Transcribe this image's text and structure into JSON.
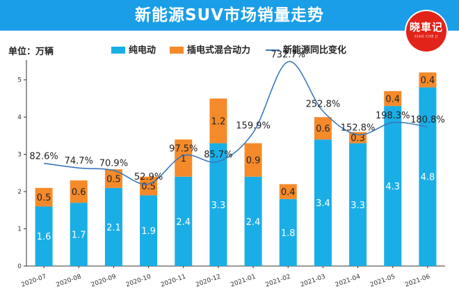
{
  "header": {
    "title": "新能源SUV市场销量走势"
  },
  "logo": {
    "text": "晓車记",
    "sub": "XIAO CHE JI"
  },
  "unit_label": "单位：万辆",
  "colors": {
    "header": "#1a9ee8",
    "bev": "#1aaee6",
    "phev": "#f58a2a",
    "line": "#3b78b8",
    "logo": "#e2231a"
  },
  "chart_data": {
    "type": "bar",
    "stacked": true,
    "title": "新能源SUV市场销量走势",
    "ylabel": "单位：万辆",
    "ylim": [
      0,
      5.5
    ],
    "yticks": [
      0,
      1,
      2,
      3,
      4,
      5
    ],
    "categories": [
      "2020-07",
      "2020-08",
      "2020-09",
      "2020-10",
      "2020-11",
      "2020-12",
      "2021-01",
      "2021-02",
      "2021-03",
      "2021-04",
      "2021-05",
      "2021-06"
    ],
    "series": [
      {
        "name": "纯电动",
        "values": [
          1.6,
          1.7,
          2.1,
          1.9,
          2.4,
          3.3,
          2.4,
          1.8,
          3.4,
          3.3,
          4.3,
          4.8
        ]
      },
      {
        "name": "插电式混合动力",
        "values": [
          0.5,
          0.6,
          0.5,
          0.5,
          1.0,
          1.2,
          0.9,
          0.4,
          0.6,
          0.3,
          0.4,
          0.4
        ]
      }
    ],
    "line_series": {
      "name": "新能源同比变化",
      "labels": [
        "82.6%",
        "74.7%",
        "70.9%",
        "52.9%",
        "97.5%",
        "85.7%",
        "159.9%",
        "732.7%",
        "252.8%",
        "152.8%",
        "198.3%",
        "180.8%"
      ],
      "values": [
        82.6,
        74.7,
        70.9,
        52.9,
        97.5,
        85.7,
        159.9,
        732.7,
        252.8,
        152.8,
        198.3,
        180.8
      ]
    },
    "legend": [
      "纯电动",
      "插电式混合动力",
      "新能源同比变化"
    ]
  }
}
